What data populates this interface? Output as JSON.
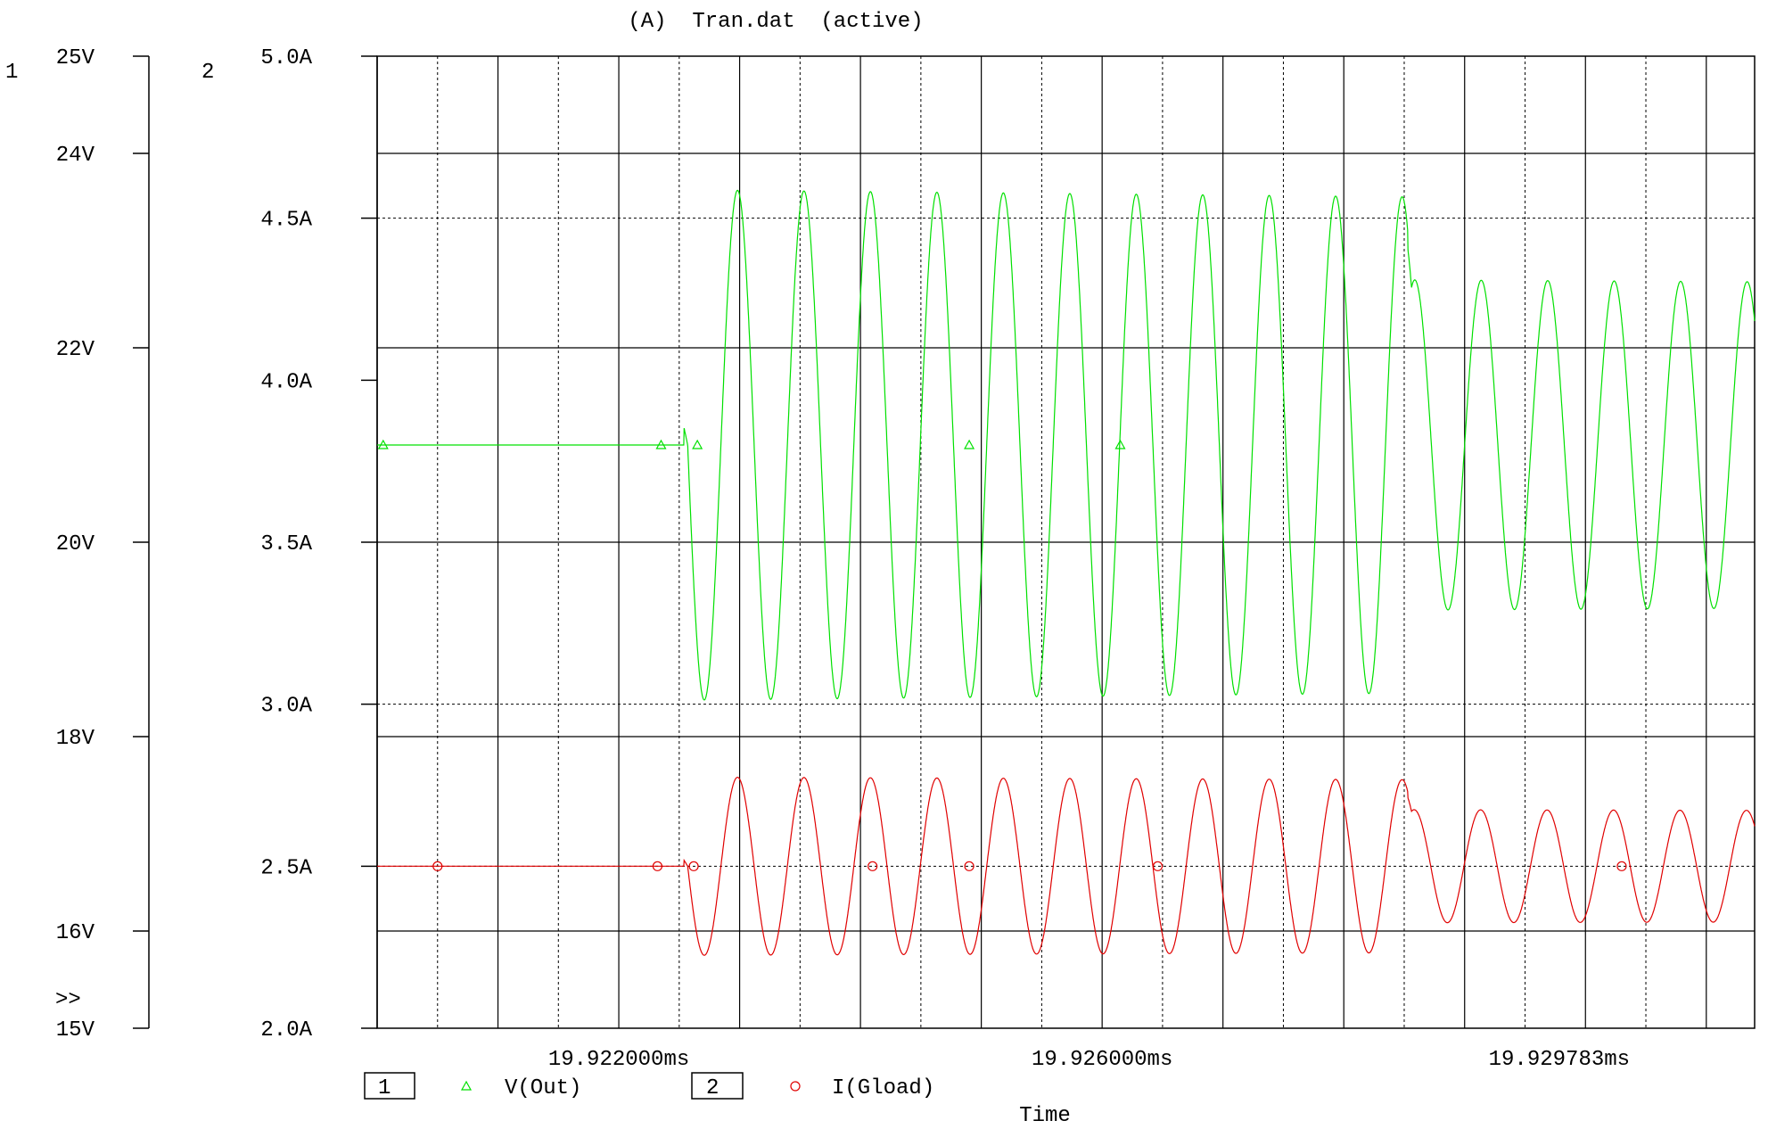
{
  "title": "(A)  Tran.dat  (active)",
  "chart_data": {
    "type": "line",
    "title": "(A)  Tran.dat  (active)",
    "xlabel": "Time",
    "x_tick_labels": [
      "19.922000ms",
      "19.926000ms",
      "19.929783ms"
    ],
    "x_ticks_ms": [
      19.922,
      19.926,
      19.929783
    ],
    "xlim_ms": [
      19.92,
      19.9314
    ],
    "grid": true,
    "axes": [
      {
        "id": "1",
        "unit": "V",
        "ylim": [
          15,
          25
        ],
        "tick_values": [
          25,
          24,
          22,
          20,
          18,
          16,
          15
        ],
        "tick_labels": [
          "25V",
          "24V",
          "22V",
          "20V",
          "18V",
          "16V",
          "15V"
        ]
      },
      {
        "id": "2",
        "unit": "A",
        "ylim": [
          2.0,
          5.0
        ],
        "tick_values": [
          5.0,
          4.5,
          4.0,
          3.5,
          3.0,
          2.5,
          2.0
        ],
        "tick_labels": [
          "5.0A",
          "4.5A",
          "4.0A",
          "3.5A",
          "3.0A",
          "2.5A",
          "2.0A"
        ]
      }
    ],
    "axis_overflow_marker": ">>",
    "series": [
      {
        "name": "V(Out)",
        "axis": "1",
        "color": "#00e000",
        "marker": "triangle",
        "baseline": 21.0,
        "events": [
          {
            "t_ms": 19.92257,
            "kind": "drop-then-ring",
            "peak": 24.55,
            "trough": 19.3,
            "decay_ms": 0.9
          },
          {
            "t_ms": 19.92856,
            "kind": "rise-then-ring",
            "peak": 24.5,
            "trough": 19.5,
            "decay_ms": 1.3
          }
        ]
      },
      {
        "name": "I(Gload)",
        "axis": "2",
        "color": "#e00000",
        "marker": "circle",
        "baseline": 2.5,
        "events": [
          {
            "t_ms": 19.92257,
            "kind": "drop-then-ring",
            "peak": 2.82,
            "trough": 2.27,
            "decay_ms": 0.85
          },
          {
            "t_ms": 19.92856,
            "kind": "rise-then-ring",
            "peak": 2.8,
            "trough": 2.3,
            "decay_ms": 1.3
          }
        ]
      }
    ],
    "legend": [
      {
        "axis_id": "1",
        "symbol": "triangle",
        "label": "V(Out)",
        "color": "#00e000"
      },
      {
        "axis_id": "2",
        "symbol": "circle",
        "label": "I(Gload)",
        "color": "#e00000"
      }
    ]
  }
}
